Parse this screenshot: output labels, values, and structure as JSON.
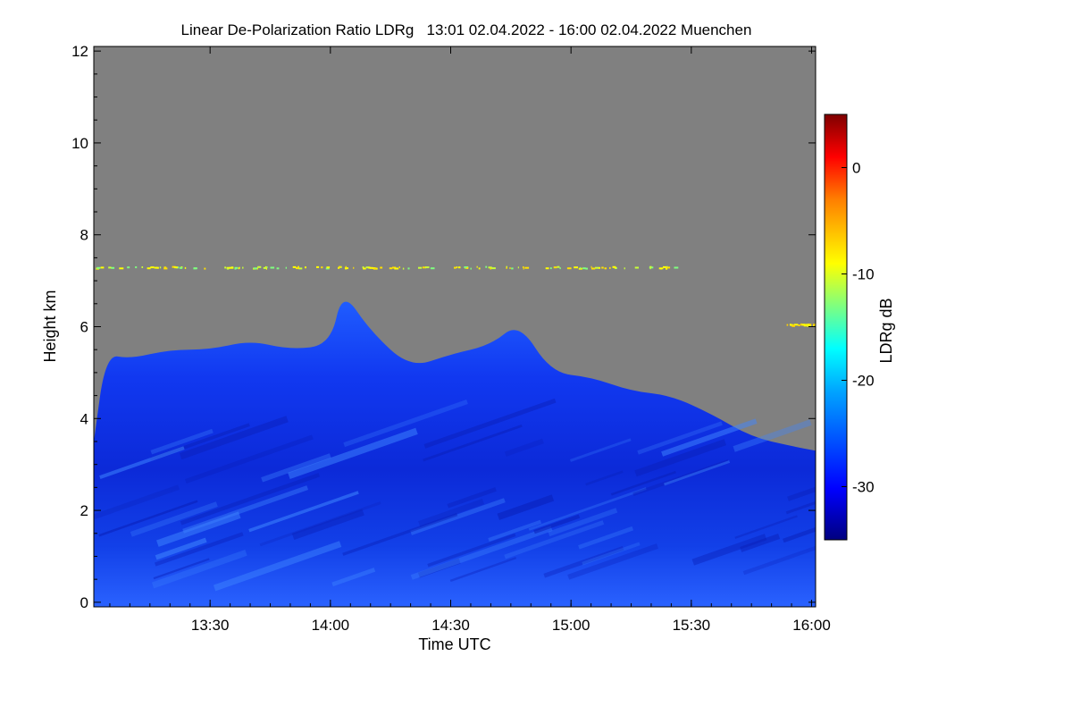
{
  "chart_data": {
    "type": "heatmap",
    "title": "Linear De-Polarization Ratio LDRg   13:01 02.04.2022 - 16:00 02.04.2022 Muenchen",
    "xlabel": "Time UTC",
    "ylabel": "Height km",
    "colorbar_label": "LDRg dB",
    "x_range": [
      "13:01",
      "16:01"
    ],
    "y_range": [
      -0.1,
      12.1
    ],
    "x_ticks": [
      {
        "time": "13:30",
        "label": "13:30"
      },
      {
        "time": "14:00",
        "label": "14:00"
      },
      {
        "time": "14:30",
        "label": "14:30"
      },
      {
        "time": "15:00",
        "label": "15:00"
      },
      {
        "time": "15:30",
        "label": "15:30"
      },
      {
        "time": "16:00",
        "label": "16:00"
      }
    ],
    "y_ticks": [
      0,
      2,
      4,
      6,
      8,
      10,
      12
    ],
    "colorbar_range": [
      -35,
      5
    ],
    "colorbar_ticks": [
      {
        "value": 0,
        "label": "0"
      },
      {
        "value": -10,
        "label": "-10"
      },
      {
        "value": -20,
        "label": "-20"
      },
      {
        "value": -30,
        "label": "-30"
      }
    ],
    "no_data_color": "#808080",
    "cloud_top_km": [
      {
        "time": "13:01",
        "top": 3.5
      },
      {
        "time": "13:04",
        "top": 5.4
      },
      {
        "time": "13:10",
        "top": 5.3
      },
      {
        "time": "13:20",
        "top": 5.5
      },
      {
        "time": "13:30",
        "top": 5.5
      },
      {
        "time": "13:40",
        "top": 5.7
      },
      {
        "time": "13:50",
        "top": 5.5
      },
      {
        "time": "14:00",
        "top": 5.6
      },
      {
        "time": "14:03",
        "top": 6.8
      },
      {
        "time": "14:10",
        "top": 5.9
      },
      {
        "time": "14:20",
        "top": 5.1
      },
      {
        "time": "14:30",
        "top": 5.4
      },
      {
        "time": "14:40",
        "top": 5.6
      },
      {
        "time": "14:47",
        "top": 6.1
      },
      {
        "time": "14:55",
        "top": 5.0
      },
      {
        "time": "15:05",
        "top": 4.9
      },
      {
        "time": "15:15",
        "top": 4.6
      },
      {
        "time": "15:25",
        "top": 4.5
      },
      {
        "time": "15:35",
        "top": 4.1
      },
      {
        "time": "15:45",
        "top": 3.6
      },
      {
        "time": "15:55",
        "top": 3.4
      },
      {
        "time": "16:01",
        "top": 3.3
      }
    ]
  }
}
